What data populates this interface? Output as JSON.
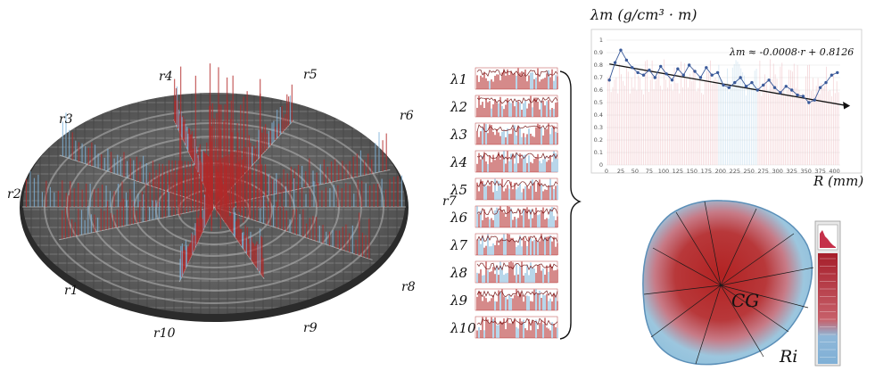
{
  "chart_data": [
    {
      "type": "line",
      "title": "λm (g/cm³ · m)",
      "xlabel": "R (mm)",
      "ylabel": "λm (g/cm³ · m)",
      "xlim": [
        0,
        410
      ],
      "ylim": [
        0,
        1
      ],
      "xticks": [
        "0",
        "25",
        "50",
        "75",
        "100",
        "125",
        "150",
        "175",
        "200",
        "225",
        "250",
        "275",
        "300",
        "325",
        "350",
        "375",
        "400"
      ],
      "yticks": [
        "0",
        "0.1",
        "0.2",
        "0.3",
        "0.4",
        "0.5",
        "0.6",
        "0.7",
        "0.8",
        "0.9",
        "1"
      ],
      "grid": true,
      "trendline": {
        "slope": -0.0008,
        "intercept": 0.8126,
        "label": "λm ≈ -0.0008·r + 0.8126"
      },
      "series": [
        {
          "x": [
            5,
            15,
            25,
            35,
            45,
            55,
            65,
            75,
            85,
            95,
            105,
            115,
            125,
            135,
            145,
            155,
            165,
            175,
            185,
            195,
            205,
            215,
            225,
            235,
            245,
            255,
            265,
            275,
            285,
            295,
            305,
            315,
            325,
            335,
            345,
            355,
            365,
            375,
            385,
            395,
            405
          ],
          "values": [
            0.68,
            0.82,
            0.92,
            0.84,
            0.78,
            0.74,
            0.72,
            0.76,
            0.7,
            0.79,
            0.73,
            0.68,
            0.77,
            0.72,
            0.8,
            0.75,
            0.7,
            0.78,
            0.72,
            0.74,
            0.64,
            0.62,
            0.66,
            0.7,
            0.63,
            0.66,
            0.6,
            0.64,
            0.68,
            0.62,
            0.58,
            0.63,
            0.6,
            0.56,
            0.55,
            0.5,
            0.52,
            0.62,
            0.66,
            0.72,
            0.74
          ]
        }
      ]
    },
    {
      "type": "bar",
      "categories": [
        "λ1",
        "λ2",
        "λ3",
        "λ4",
        "λ5",
        "λ6",
        "λ7",
        "λ8",
        "λ9",
        "λ10"
      ]
    }
  ],
  "radial_labels": [
    "r1",
    "r2",
    "r3",
    "r4",
    "r5",
    "r6",
    "r7",
    "r8",
    "r9",
    "r10"
  ],
  "cross_section_labels": {
    "centroid": "CG",
    "radius": "Ri"
  },
  "colors": {
    "dense": "#b22a2a",
    "light": "#7fb3d9",
    "trend": "#111111",
    "series": "#2d4e8c"
  }
}
